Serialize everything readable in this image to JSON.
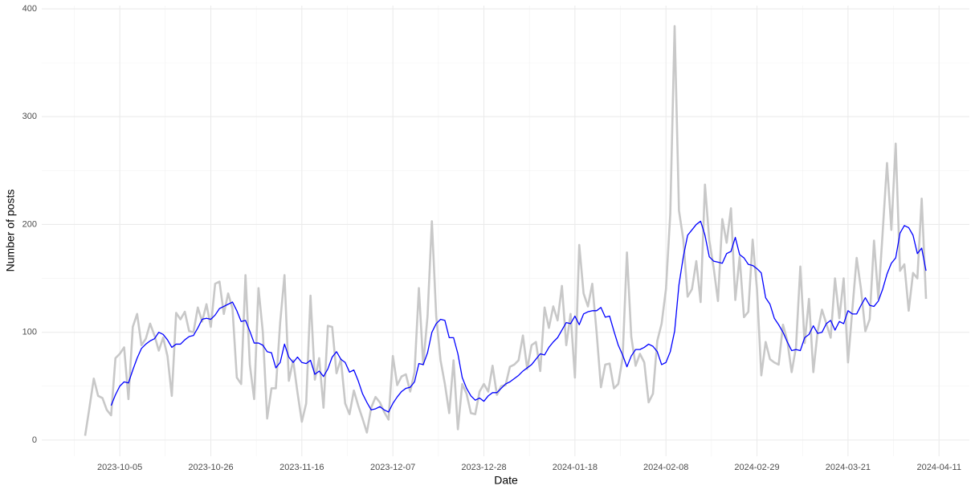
{
  "chart_data": {
    "type": "line",
    "x_label": "Date",
    "y_label": "Number of posts",
    "x": [
      "2023-09-27",
      "2023-09-28",
      "2023-09-29",
      "2023-09-30",
      "2023-10-01",
      "2023-10-02",
      "2023-10-03",
      "2023-10-04",
      "2023-10-05",
      "2023-10-06",
      "2023-10-07",
      "2023-10-08",
      "2023-10-09",
      "2023-10-10",
      "2023-10-11",
      "2023-10-12",
      "2023-10-13",
      "2023-10-14",
      "2023-10-15",
      "2023-10-16",
      "2023-10-17",
      "2023-10-18",
      "2023-10-19",
      "2023-10-20",
      "2023-10-21",
      "2023-10-22",
      "2023-10-23",
      "2023-10-24",
      "2023-10-25",
      "2023-10-26",
      "2023-10-27",
      "2023-10-28",
      "2023-10-29",
      "2023-10-30",
      "2023-10-31",
      "2023-11-01",
      "2023-11-02",
      "2023-11-03",
      "2023-11-04",
      "2023-11-05",
      "2023-11-06",
      "2023-11-07",
      "2023-11-08",
      "2023-11-09",
      "2023-11-10",
      "2023-11-11",
      "2023-11-12",
      "2023-11-13",
      "2023-11-14",
      "2023-11-15",
      "2023-11-16",
      "2023-11-17",
      "2023-11-18",
      "2023-11-19",
      "2023-11-20",
      "2023-11-21",
      "2023-11-22",
      "2023-11-23",
      "2023-11-24",
      "2023-11-25",
      "2023-11-26",
      "2023-11-27",
      "2023-11-28",
      "2023-11-29",
      "2023-11-30",
      "2023-12-01",
      "2023-12-02",
      "2023-12-03",
      "2023-12-04",
      "2023-12-05",
      "2023-12-06",
      "2023-12-07",
      "2023-12-08",
      "2023-12-09",
      "2023-12-10",
      "2023-12-11",
      "2023-12-12",
      "2023-12-13",
      "2023-12-14",
      "2023-12-15",
      "2023-12-16",
      "2023-12-17",
      "2023-12-18",
      "2023-12-19",
      "2023-12-20",
      "2023-12-21",
      "2023-12-22",
      "2023-12-23",
      "2023-12-24",
      "2023-12-25",
      "2023-12-26",
      "2023-12-27",
      "2023-12-28",
      "2023-12-29",
      "2023-12-30",
      "2023-12-31",
      "2024-01-01",
      "2024-01-02",
      "2024-01-03",
      "2024-01-04",
      "2024-01-05",
      "2024-01-06",
      "2024-01-07",
      "2024-01-08",
      "2024-01-09",
      "2024-01-10",
      "2024-01-11",
      "2024-01-12",
      "2024-01-13",
      "2024-01-14",
      "2024-01-15",
      "2024-01-16",
      "2024-01-17",
      "2024-01-18",
      "2024-01-19",
      "2024-01-20",
      "2024-01-21",
      "2024-01-22",
      "2024-01-23",
      "2024-01-24",
      "2024-01-25",
      "2024-01-26",
      "2024-01-27",
      "2024-01-28",
      "2024-01-29",
      "2024-01-30",
      "2024-01-31",
      "2024-02-01",
      "2024-02-02",
      "2024-02-03",
      "2024-02-04",
      "2024-02-05",
      "2024-02-06",
      "2024-02-07",
      "2024-02-08",
      "2024-02-09",
      "2024-02-10",
      "2024-02-11",
      "2024-02-12",
      "2024-02-13",
      "2024-02-14",
      "2024-02-15",
      "2024-02-16",
      "2024-02-17",
      "2024-02-18",
      "2024-02-19",
      "2024-02-20",
      "2024-02-21",
      "2024-02-22",
      "2024-02-23",
      "2024-02-24",
      "2024-02-25",
      "2024-02-26",
      "2024-02-27",
      "2024-02-28",
      "2024-02-29",
      "2024-03-01",
      "2024-03-02",
      "2024-03-03",
      "2024-03-04",
      "2024-03-05",
      "2024-03-06",
      "2024-03-07",
      "2024-03-08",
      "2024-03-09",
      "2024-03-10",
      "2024-03-11",
      "2024-03-12",
      "2024-03-13",
      "2024-03-14",
      "2024-03-15",
      "2024-03-16",
      "2024-03-17",
      "2024-03-18",
      "2024-03-19",
      "2024-03-20",
      "2024-03-21",
      "2024-03-22",
      "2024-03-23",
      "2024-03-24",
      "2024-03-25",
      "2024-03-26",
      "2024-03-27",
      "2024-03-28",
      "2024-03-29",
      "2024-03-30",
      "2024-03-31",
      "2024-04-01",
      "2024-04-02",
      "2024-04-03",
      "2024-04-04",
      "2024-04-05",
      "2024-04-06",
      "2024-04-07",
      "2024-04-08"
    ],
    "series": [
      {
        "color": "#c8c8c8",
        "values": [
          4,
          30,
          57,
          41,
          39,
          28,
          23,
          76,
          80,
          86,
          38,
          105,
          117,
          88,
          94,
          108,
          97,
          83,
          95,
          78,
          41,
          118,
          112,
          119,
          101,
          100,
          123,
          110,
          126,
          105,
          145,
          147,
          117,
          136,
          122,
          58,
          52,
          153,
          70,
          38,
          141,
          100,
          20,
          48,
          48,
          109,
          153,
          55,
          74,
          44,
          17,
          34,
          134,
          56,
          76,
          30,
          106,
          105,
          62,
          75,
          34,
          24,
          46,
          32,
          20,
          7,
          30,
          40,
          35,
          26,
          19,
          78,
          51,
          59,
          61,
          45,
          63,
          141,
          70,
          115,
          203,
          115,
          74,
          52,
          25,
          74,
          10,
          52,
          43,
          25,
          24,
          45,
          52,
          45,
          69,
          42,
          50,
          51,
          68,
          70,
          74,
          97,
          66,
          88,
          91,
          64,
          123,
          104,
          124,
          111,
          143,
          88,
          117,
          58,
          181,
          136,
          124,
          145,
          100,
          49,
          70,
          71,
          48,
          52,
          76,
          174,
          96,
          69,
          80,
          72,
          35,
          43,
          92,
          108,
          140,
          210,
          384,
          213,
          186,
          133,
          140,
          166,
          128,
          237,
          185,
          160,
          129,
          205,
          183,
          215,
          130,
          170,
          114,
          119,
          186,
          140,
          60,
          91,
          75,
          72,
          70,
          107,
          92,
          63,
          86,
          161,
          90,
          131,
          63,
          101,
          121,
          108,
          95,
          150,
          113,
          150,
          72,
          121,
          169,
          140,
          101,
          112,
          185,
          131,
          193,
          257,
          195,
          275,
          157,
          163,
          120,
          155,
          150,
          224,
          131
        ]
      },
      {
        "color": "#0000ff",
        "values": [
          null,
          null,
          null,
          null,
          null,
          null,
          32,
          42,
          50,
          54,
          53,
          65,
          76,
          85,
          89,
          92,
          94,
          100,
          98,
          93,
          86,
          89,
          89,
          93,
          96,
          97,
          104,
          112,
          113,
          112,
          116,
          122,
          124,
          126,
          128,
          120,
          110,
          111,
          101,
          90,
          90,
          88,
          82,
          81,
          67,
          72,
          89,
          77,
          72,
          77,
          72,
          71,
          74,
          61,
          64,
          59,
          66,
          77,
          82,
          75,
          72,
          63,
          65,
          55,
          43,
          35,
          28,
          29,
          31,
          28,
          26,
          34,
          40,
          45,
          48,
          49,
          54,
          71,
          70,
          81,
          100,
          108,
          112,
          111,
          95,
          95,
          80,
          58,
          48,
          41,
          37,
          39,
          36,
          41,
          44,
          44,
          48,
          52,
          54,
          57,
          60,
          64,
          67,
          70,
          75,
          80,
          79,
          86,
          91,
          95,
          102,
          109,
          108,
          115,
          107,
          117,
          119,
          120,
          120,
          123,
          114,
          115,
          101,
          88,
          79,
          68,
          78,
          84,
          84,
          86,
          89,
          87,
          82,
          70,
          72,
          82,
          101,
          144,
          170,
          190,
          195,
          200,
          203,
          190,
          170,
          166,
          165,
          164,
          173,
          175,
          188,
          172,
          169,
          163,
          162,
          159,
          155,
          132,
          126,
          113,
          107,
          100,
          91,
          83,
          84,
          83,
          95,
          98,
          106,
          99,
          100,
          108,
          111,
          102,
          110,
          108,
          120,
          117,
          117,
          125,
          132,
          125,
          124,
          129,
          140,
          154,
          164,
          169,
          192,
          199,
          197,
          190,
          173,
          178,
          157
        ]
      }
    ],
    "xlim": [
      "2023-09-17",
      "2024-04-18"
    ],
    "xticks": [
      "2023-10-05",
      "2023-10-26",
      "2023-11-16",
      "2023-12-07",
      "2023-12-28",
      "2024-01-18",
      "2024-02-08",
      "2024-02-29",
      "2024-03-21",
      "2024-04-11"
    ],
    "ylim": [
      -15,
      403
    ],
    "yticks": [
      0,
      100,
      200,
      300,
      400
    ],
    "grid": true
  }
}
